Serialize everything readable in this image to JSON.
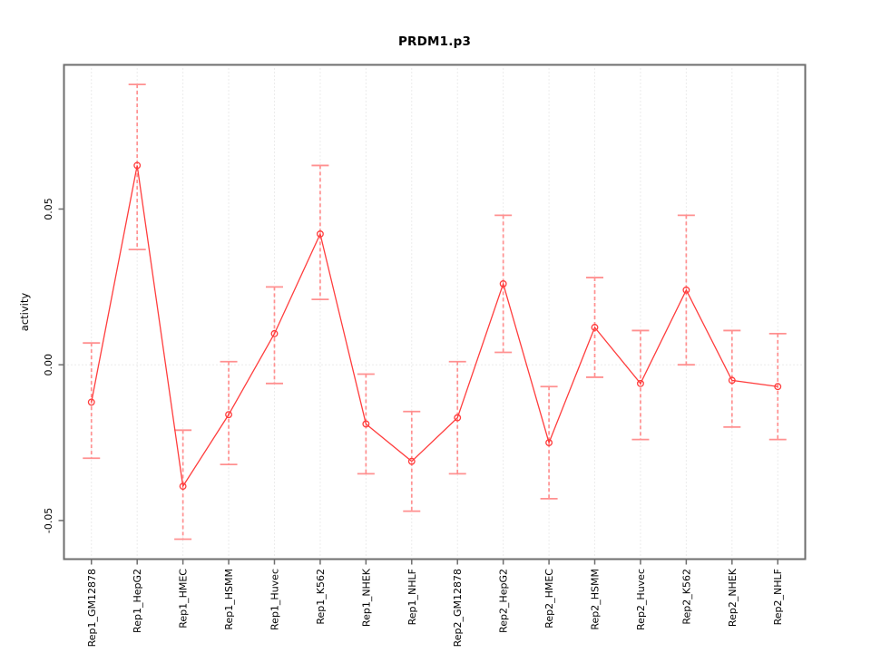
{
  "chart_data": {
    "type": "line",
    "title": "PRDM1.p3",
    "xlabel": "",
    "ylabel": "activity",
    "categories": [
      "Rep1_GM12878",
      "Rep1_HepG2",
      "Rep1_HMEC",
      "Rep1_HSMM",
      "Rep1_Huvec",
      "Rep1_K562",
      "Rep1_NHEK",
      "Rep1_NHLF",
      "Rep2_GM12878",
      "Rep2_HepG2",
      "Rep2_HMEC",
      "Rep2_HSMM",
      "Rep2_Huvec",
      "Rep2_K562",
      "Rep2_NHEK",
      "Rep2_NHLF"
    ],
    "series": [
      {
        "name": "PRDM1.p3 activity",
        "values": [
          -0.012,
          0.064,
          -0.039,
          -0.016,
          0.01,
          0.042,
          -0.019,
          -0.031,
          -0.017,
          0.026,
          -0.025,
          0.012,
          -0.006,
          0.024,
          -0.005,
          -0.007
        ],
        "upper": [
          0.007,
          0.09,
          -0.021,
          0.001,
          0.025,
          0.064,
          -0.003,
          -0.015,
          0.001,
          0.048,
          -0.007,
          0.028,
          0.011,
          0.048,
          0.011,
          0.01
        ],
        "lower": [
          -0.03,
          0.037,
          -0.056,
          -0.032,
          -0.006,
          0.021,
          -0.035,
          -0.047,
          -0.035,
          0.004,
          -0.043,
          -0.004,
          -0.024,
          0.0,
          -0.02,
          -0.024
        ]
      }
    ],
    "error_bars": true,
    "marker": "open-circle",
    "ylim": [
      -0.0624,
      0.0963
    ],
    "yticks": [
      -0.05,
      0.0,
      0.05
    ],
    "ytick_labels": [
      "-0.05",
      "0.00",
      "0.05"
    ],
    "grid": "vertical-dotted-gridlines-and-dotted-zero-line",
    "legend": "none",
    "colors": {
      "series_line": "#ff3d3d",
      "marker": "#ff3d3d",
      "error_bar": "#ff9090",
      "grid": "#d8d8d8",
      "axis": "#6e6e6e",
      "text": "#000000",
      "background": "#ffffff"
    }
  }
}
